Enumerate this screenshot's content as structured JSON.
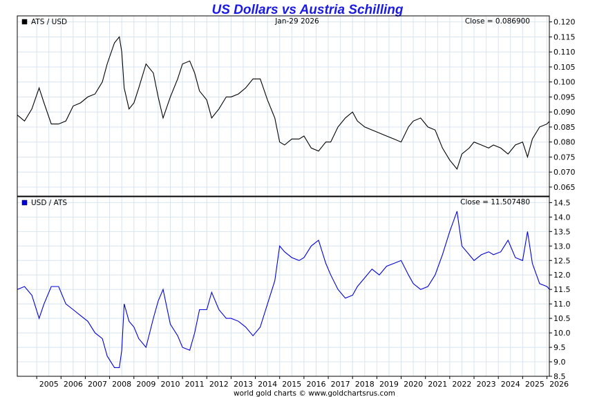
{
  "title": "US Dollars vs Austria Schilling",
  "date_label": "Jan-29  2026",
  "footer": "world gold charts © www.goldchartsrus.com",
  "colors": {
    "title": "#1a1ae6",
    "top_series": "#000000",
    "bottom_series": "#0000dd",
    "grid": "#d8e4ef"
  },
  "chart_data": [
    {
      "type": "line",
      "legend": "ATS / USD",
      "close_label": "Close = 0.086900",
      "grid": true,
      "y_axis_side": "right",
      "ylim": [
        0.062,
        0.122
      ],
      "yticks": [
        "0.120",
        "0.115",
        "0.110",
        "0.105",
        "0.100",
        "0.095",
        "0.090",
        "0.085",
        "0.080",
        "0.075",
        "0.070",
        "0.065"
      ],
      "xlim": [
        2004.2,
        2026.1
      ],
      "series": [
        {
          "name": "ATS / USD",
          "x": [
            2004.2,
            2004.5,
            2004.8,
            2005.1,
            2005.3,
            2005.6,
            2005.9,
            2006.2,
            2006.5,
            2006.8,
            2007.1,
            2007.4,
            2007.7,
            2007.9,
            2008.2,
            2008.4,
            2008.5,
            2008.6,
            2008.8,
            2009.0,
            2009.2,
            2009.5,
            2009.8,
            2010.0,
            2010.2,
            2010.5,
            2010.8,
            2011.0,
            2011.3,
            2011.5,
            2011.7,
            2012.0,
            2012.2,
            2012.5,
            2012.8,
            2013.0,
            2013.3,
            2013.6,
            2013.9,
            2014.2,
            2014.5,
            2014.8,
            2015.0,
            2015.2,
            2015.5,
            2015.8,
            2016.0,
            2016.3,
            2016.6,
            2016.9,
            2017.1,
            2017.4,
            2017.7,
            2018.0,
            2018.2,
            2018.5,
            2018.8,
            2019.1,
            2019.4,
            2019.7,
            2020.0,
            2020.3,
            2020.5,
            2020.8,
            2021.1,
            2021.4,
            2021.7,
            2022.0,
            2022.3,
            2022.5,
            2022.8,
            2023.0,
            2023.3,
            2023.6,
            2023.8,
            2024.1,
            2024.4,
            2024.7,
            2025.0,
            2025.2,
            2025.4,
            2025.7,
            2026.0,
            2026.1
          ],
          "y": [
            0.089,
            0.087,
            0.091,
            0.098,
            0.093,
            0.086,
            0.086,
            0.087,
            0.092,
            0.093,
            0.095,
            0.096,
            0.1,
            0.106,
            0.113,
            0.115,
            0.11,
            0.098,
            0.091,
            0.093,
            0.098,
            0.106,
            0.103,
            0.095,
            0.088,
            0.095,
            0.101,
            0.106,
            0.107,
            0.103,
            0.097,
            0.094,
            0.088,
            0.091,
            0.095,
            0.095,
            0.096,
            0.098,
            0.101,
            0.101,
            0.094,
            0.088,
            0.08,
            0.079,
            0.081,
            0.081,
            0.082,
            0.078,
            0.077,
            0.08,
            0.08,
            0.085,
            0.088,
            0.09,
            0.087,
            0.085,
            0.084,
            0.083,
            0.082,
            0.081,
            0.08,
            0.085,
            0.087,
            0.088,
            0.085,
            0.084,
            0.078,
            0.074,
            0.071,
            0.076,
            0.078,
            0.08,
            0.079,
            0.078,
            0.079,
            0.078,
            0.076,
            0.079,
            0.08,
            0.075,
            0.081,
            0.085,
            0.086,
            0.0869
          ]
        }
      ]
    },
    {
      "type": "line",
      "legend": "USD / ATS",
      "close_label": "Close = 11.507480",
      "grid": true,
      "y_axis_side": "right",
      "ylim": [
        8.5,
        14.7
      ],
      "yticks": [
        "14.5",
        "14.0",
        "13.5",
        "13.0",
        "12.5",
        "12.0",
        "11.5",
        "11.0",
        "10.5",
        "10.0",
        "9.5",
        "9.0",
        "8.5"
      ],
      "xlim": [
        2004.2,
        2026.1
      ],
      "xticks": [
        "2005",
        "2006",
        "2007",
        "2008",
        "2009",
        "2010",
        "2011",
        "2012",
        "2013",
        "2014",
        "2015",
        "2016",
        "2017",
        "2018",
        "2019",
        "2020",
        "2021",
        "2022",
        "2023",
        "2024",
        "2025",
        "2026"
      ],
      "series": [
        {
          "name": "USD / ATS",
          "x": [
            2004.2,
            2004.5,
            2004.8,
            2005.1,
            2005.3,
            2005.6,
            2005.9,
            2006.2,
            2006.5,
            2006.8,
            2007.1,
            2007.4,
            2007.7,
            2007.9,
            2008.2,
            2008.4,
            2008.5,
            2008.6,
            2008.8,
            2009.0,
            2009.2,
            2009.5,
            2009.8,
            2010.0,
            2010.2,
            2010.5,
            2010.8,
            2011.0,
            2011.3,
            2011.5,
            2011.7,
            2012.0,
            2012.2,
            2012.5,
            2012.8,
            2013.0,
            2013.3,
            2013.6,
            2013.9,
            2014.2,
            2014.5,
            2014.8,
            2015.0,
            2015.2,
            2015.5,
            2015.8,
            2016.0,
            2016.3,
            2016.6,
            2016.9,
            2017.1,
            2017.4,
            2017.7,
            2018.0,
            2018.2,
            2018.5,
            2018.8,
            2019.1,
            2019.4,
            2019.7,
            2020.0,
            2020.3,
            2020.5,
            2020.8,
            2021.1,
            2021.4,
            2021.7,
            2022.0,
            2022.3,
            2022.5,
            2022.8,
            2023.0,
            2023.3,
            2023.6,
            2023.8,
            2024.1,
            2024.4,
            2024.7,
            2025.0,
            2025.2,
            2025.4,
            2025.7,
            2026.0,
            2026.1
          ],
          "y": [
            11.5,
            11.6,
            11.3,
            10.5,
            11.0,
            11.6,
            11.6,
            11.0,
            10.8,
            10.6,
            10.4,
            10.0,
            9.8,
            9.2,
            8.8,
            8.8,
            9.4,
            11.0,
            10.4,
            10.2,
            9.8,
            9.5,
            10.5,
            11.1,
            11.5,
            10.3,
            9.9,
            9.5,
            9.4,
            10.0,
            10.8,
            10.8,
            11.4,
            10.8,
            10.5,
            10.5,
            10.4,
            10.2,
            9.9,
            10.2,
            11.0,
            11.8,
            13.0,
            12.8,
            12.6,
            12.5,
            12.6,
            13.0,
            13.2,
            12.4,
            12.0,
            11.5,
            11.2,
            11.3,
            11.6,
            11.9,
            12.2,
            12.0,
            12.3,
            12.4,
            12.5,
            12.0,
            11.7,
            11.5,
            11.6,
            12.0,
            12.7,
            13.5,
            14.2,
            13.0,
            12.7,
            12.5,
            12.7,
            12.8,
            12.7,
            12.8,
            13.2,
            12.6,
            12.5,
            13.5,
            12.4,
            11.7,
            11.6,
            11.507
          ]
        }
      ]
    }
  ]
}
